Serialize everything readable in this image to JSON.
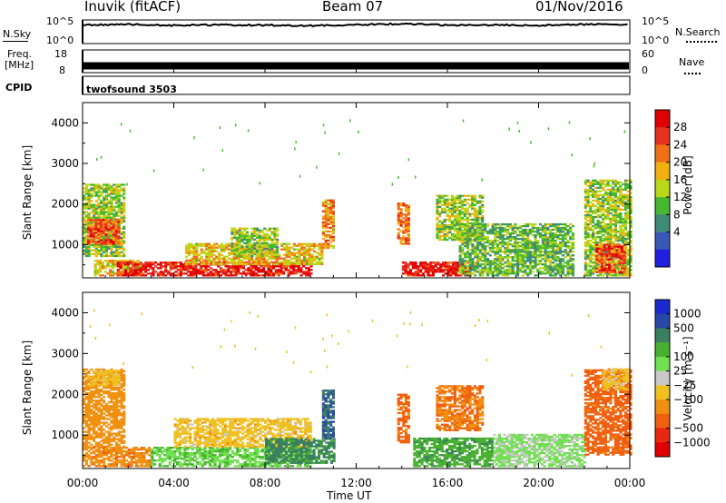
{
  "header": {
    "station": "Inuvik (fitACF)",
    "beam": "Beam 07",
    "date": "01/Nov/2016"
  },
  "noise_panel": {
    "left_label": "N.Sky",
    "left_ticks": [
      "10^5",
      "10^0"
    ],
    "right_ticks": [
      "10^5",
      "10^0"
    ],
    "right_label": "N.Search"
  },
  "freq_panel": {
    "left_label_1": "Freq.",
    "left_label_2": "[MHz]",
    "left_ticks": [
      "18",
      "8"
    ],
    "right_ticks": [
      "60",
      "0"
    ],
    "right_label": "Nave"
  },
  "cpid": {
    "label": "CPID",
    "value": "twofsound 3503"
  },
  "axes": {
    "x_ticks": [
      "00:00",
      "04:00",
      "08:00",
      "12:00",
      "16:00",
      "20:00",
      "00:00"
    ],
    "x_label": "Time UT",
    "y_label": "Slant Range [km]",
    "y_ticks": [
      "1000",
      "2000",
      "3000",
      "4000"
    ]
  },
  "colors": {
    "power": [
      "#2020e0",
      "#3858b8",
      "#408a78",
      "#46b830",
      "#b8d818",
      "#f0b010",
      "#f07018",
      "#e83020",
      "#e00000"
    ],
    "velocity": [
      "#1c28d0",
      "#2848a8",
      "#3a8060",
      "#48b030",
      "#70e050",
      "#c8c8c8",
      "#f0c020",
      "#f09010",
      "#f06010",
      "#e82810",
      "#e00000"
    ],
    "colorbar_power": [
      "#e00000",
      "#e83020",
      "#f07018",
      "#f0b010",
      "#b8d818",
      "#46b830",
      "#408a78",
      "#3858b8",
      "#2020e0"
    ],
    "colorbar_velocity": [
      "#1c28d0",
      "#2848a8",
      "#3a8060",
      "#48b030",
      "#70e050",
      "#c8c8c8",
      "#f0c020",
      "#f09010",
      "#f06010",
      "#e82810",
      "#e00000"
    ]
  },
  "colorbars": {
    "power": {
      "label": "Power [dB]",
      "ticks": [
        "28",
        "24",
        "20",
        "16",
        "12",
        "8",
        "4"
      ]
    },
    "velocity": {
      "label": "Velocity [m s⁻¹]",
      "ticks": [
        "1000",
        "500",
        "100",
        "25",
        "−25",
        "−100",
        "−500",
        "−1000"
      ]
    }
  },
  "chart_data": [
    {
      "type": "line",
      "xlabel": "",
      "ylabel": "N.Sky",
      "x_range": [
        "00:00",
        "24:00"
      ],
      "y_scale": "log",
      "ylim": [
        1,
        100000
      ],
      "series": [
        {
          "values_x": [
            0,
            2,
            4,
            6,
            8,
            10,
            12,
            14,
            16,
            18,
            20,
            22,
            24
          ],
          "values": [
            8000,
            12000,
            7000,
            9000,
            8000,
            6000,
            9000,
            15000,
            8000,
            9000,
            7000,
            12000,
            10000
          ]
        }
      ]
    },
    {
      "type": "area",
      "xlabel": "",
      "ylabel": "Freq. [MHz]",
      "x_range": [
        "00:00",
        "24:00"
      ],
      "ylim": [
        8,
        18
      ],
      "series": [
        {
          "values_x": [
            0,
            24
          ],
          "values": [
            11,
            11
          ]
        }
      ]
    },
    {
      "type": "heatmap",
      "title": "",
      "xlabel": "Time UT",
      "ylabel": "Slant Range [km]",
      "x_range_hours": [
        0,
        24
      ],
      "ylim_km": [
        180,
        4500
      ],
      "color_scale": "Power [dB]",
      "color_range": [
        0,
        30
      ],
      "regions": [
        {
          "t": [
            0.0,
            1.8
          ],
          "r": [
            700,
            2500
          ],
          "v": 14
        },
        {
          "t": [
            0.2,
            1.6
          ],
          "r": [
            1000,
            1600
          ],
          "v": 24
        },
        {
          "t": [
            0.5,
            2.5
          ],
          "r": [
            220,
            600
          ],
          "v": 18
        },
        {
          "t": [
            1.5,
            10.0
          ],
          "r": [
            220,
            550
          ],
          "v": 27
        },
        {
          "t": [
            4.5,
            10.5
          ],
          "r": [
            500,
            1000
          ],
          "v": 18
        },
        {
          "t": [
            6.5,
            8.5
          ],
          "r": [
            700,
            1400
          ],
          "v": 14
        },
        {
          "t": [
            10.5,
            11.0
          ],
          "r": [
            900,
            2100
          ],
          "v": 20
        },
        {
          "t": [
            13.8,
            14.3
          ],
          "r": [
            1000,
            2000
          ],
          "v": 22
        },
        {
          "t": [
            14.0,
            17.0
          ],
          "r": [
            220,
            550
          ],
          "v": 27
        },
        {
          "t": [
            15.5,
            17.5
          ],
          "r": [
            1100,
            2200
          ],
          "v": 14
        },
        {
          "t": [
            16.5,
            21.5
          ],
          "r": [
            220,
            1500
          ],
          "v": 12
        },
        {
          "t": [
            22.0,
            24.0
          ],
          "r": [
            220,
            2600
          ],
          "v": 14
        },
        {
          "t": [
            22.5,
            23.8
          ],
          "r": [
            300,
            1000
          ],
          "v": 24
        }
      ]
    },
    {
      "type": "heatmap",
      "title": "",
      "xlabel": "Time UT",
      "ylabel": "Slant Range [km]",
      "x_range_hours": [
        0,
        24
      ],
      "ylim_km": [
        180,
        4500
      ],
      "color_scale": "Velocity [m s-1]",
      "color_range": [
        -1000,
        1000
      ],
      "regions": [
        {
          "t": [
            0.0,
            1.8
          ],
          "r": [
            700,
            2600
          ],
          "v": -60
        },
        {
          "t": [
            0.2,
            1.6
          ],
          "r": [
            2200,
            2600
          ],
          "v": 0
        },
        {
          "t": [
            0.0,
            3.0
          ],
          "r": [
            220,
            700
          ],
          "v": -80
        },
        {
          "t": [
            3.0,
            10.0
          ],
          "r": [
            220,
            700
          ],
          "v": 90
        },
        {
          "t": [
            4.0,
            10.0
          ],
          "r": [
            700,
            1400
          ],
          "v": 0
        },
        {
          "t": [
            8.0,
            11.0
          ],
          "r": [
            300,
            900
          ],
          "v": 300
        },
        {
          "t": [
            10.5,
            11.0
          ],
          "r": [
            900,
            2100
          ],
          "v": 500
        },
        {
          "t": [
            13.8,
            14.3
          ],
          "r": [
            800,
            2000
          ],
          "v": -150
        },
        {
          "t": [
            14.5,
            18.0
          ],
          "r": [
            220,
            900
          ],
          "v": 200
        },
        {
          "t": [
            15.5,
            17.5
          ],
          "r": [
            1100,
            2200
          ],
          "v": -100
        },
        {
          "t": [
            18.0,
            22.0
          ],
          "r": [
            220,
            1000
          ],
          "v": 60
        },
        {
          "t": [
            22.0,
            24.0
          ],
          "r": [
            500,
            2600
          ],
          "v": -150
        },
        {
          "t": [
            22.8,
            24.0
          ],
          "r": [
            2100,
            2600
          ],
          "v": 0
        }
      ]
    }
  ]
}
